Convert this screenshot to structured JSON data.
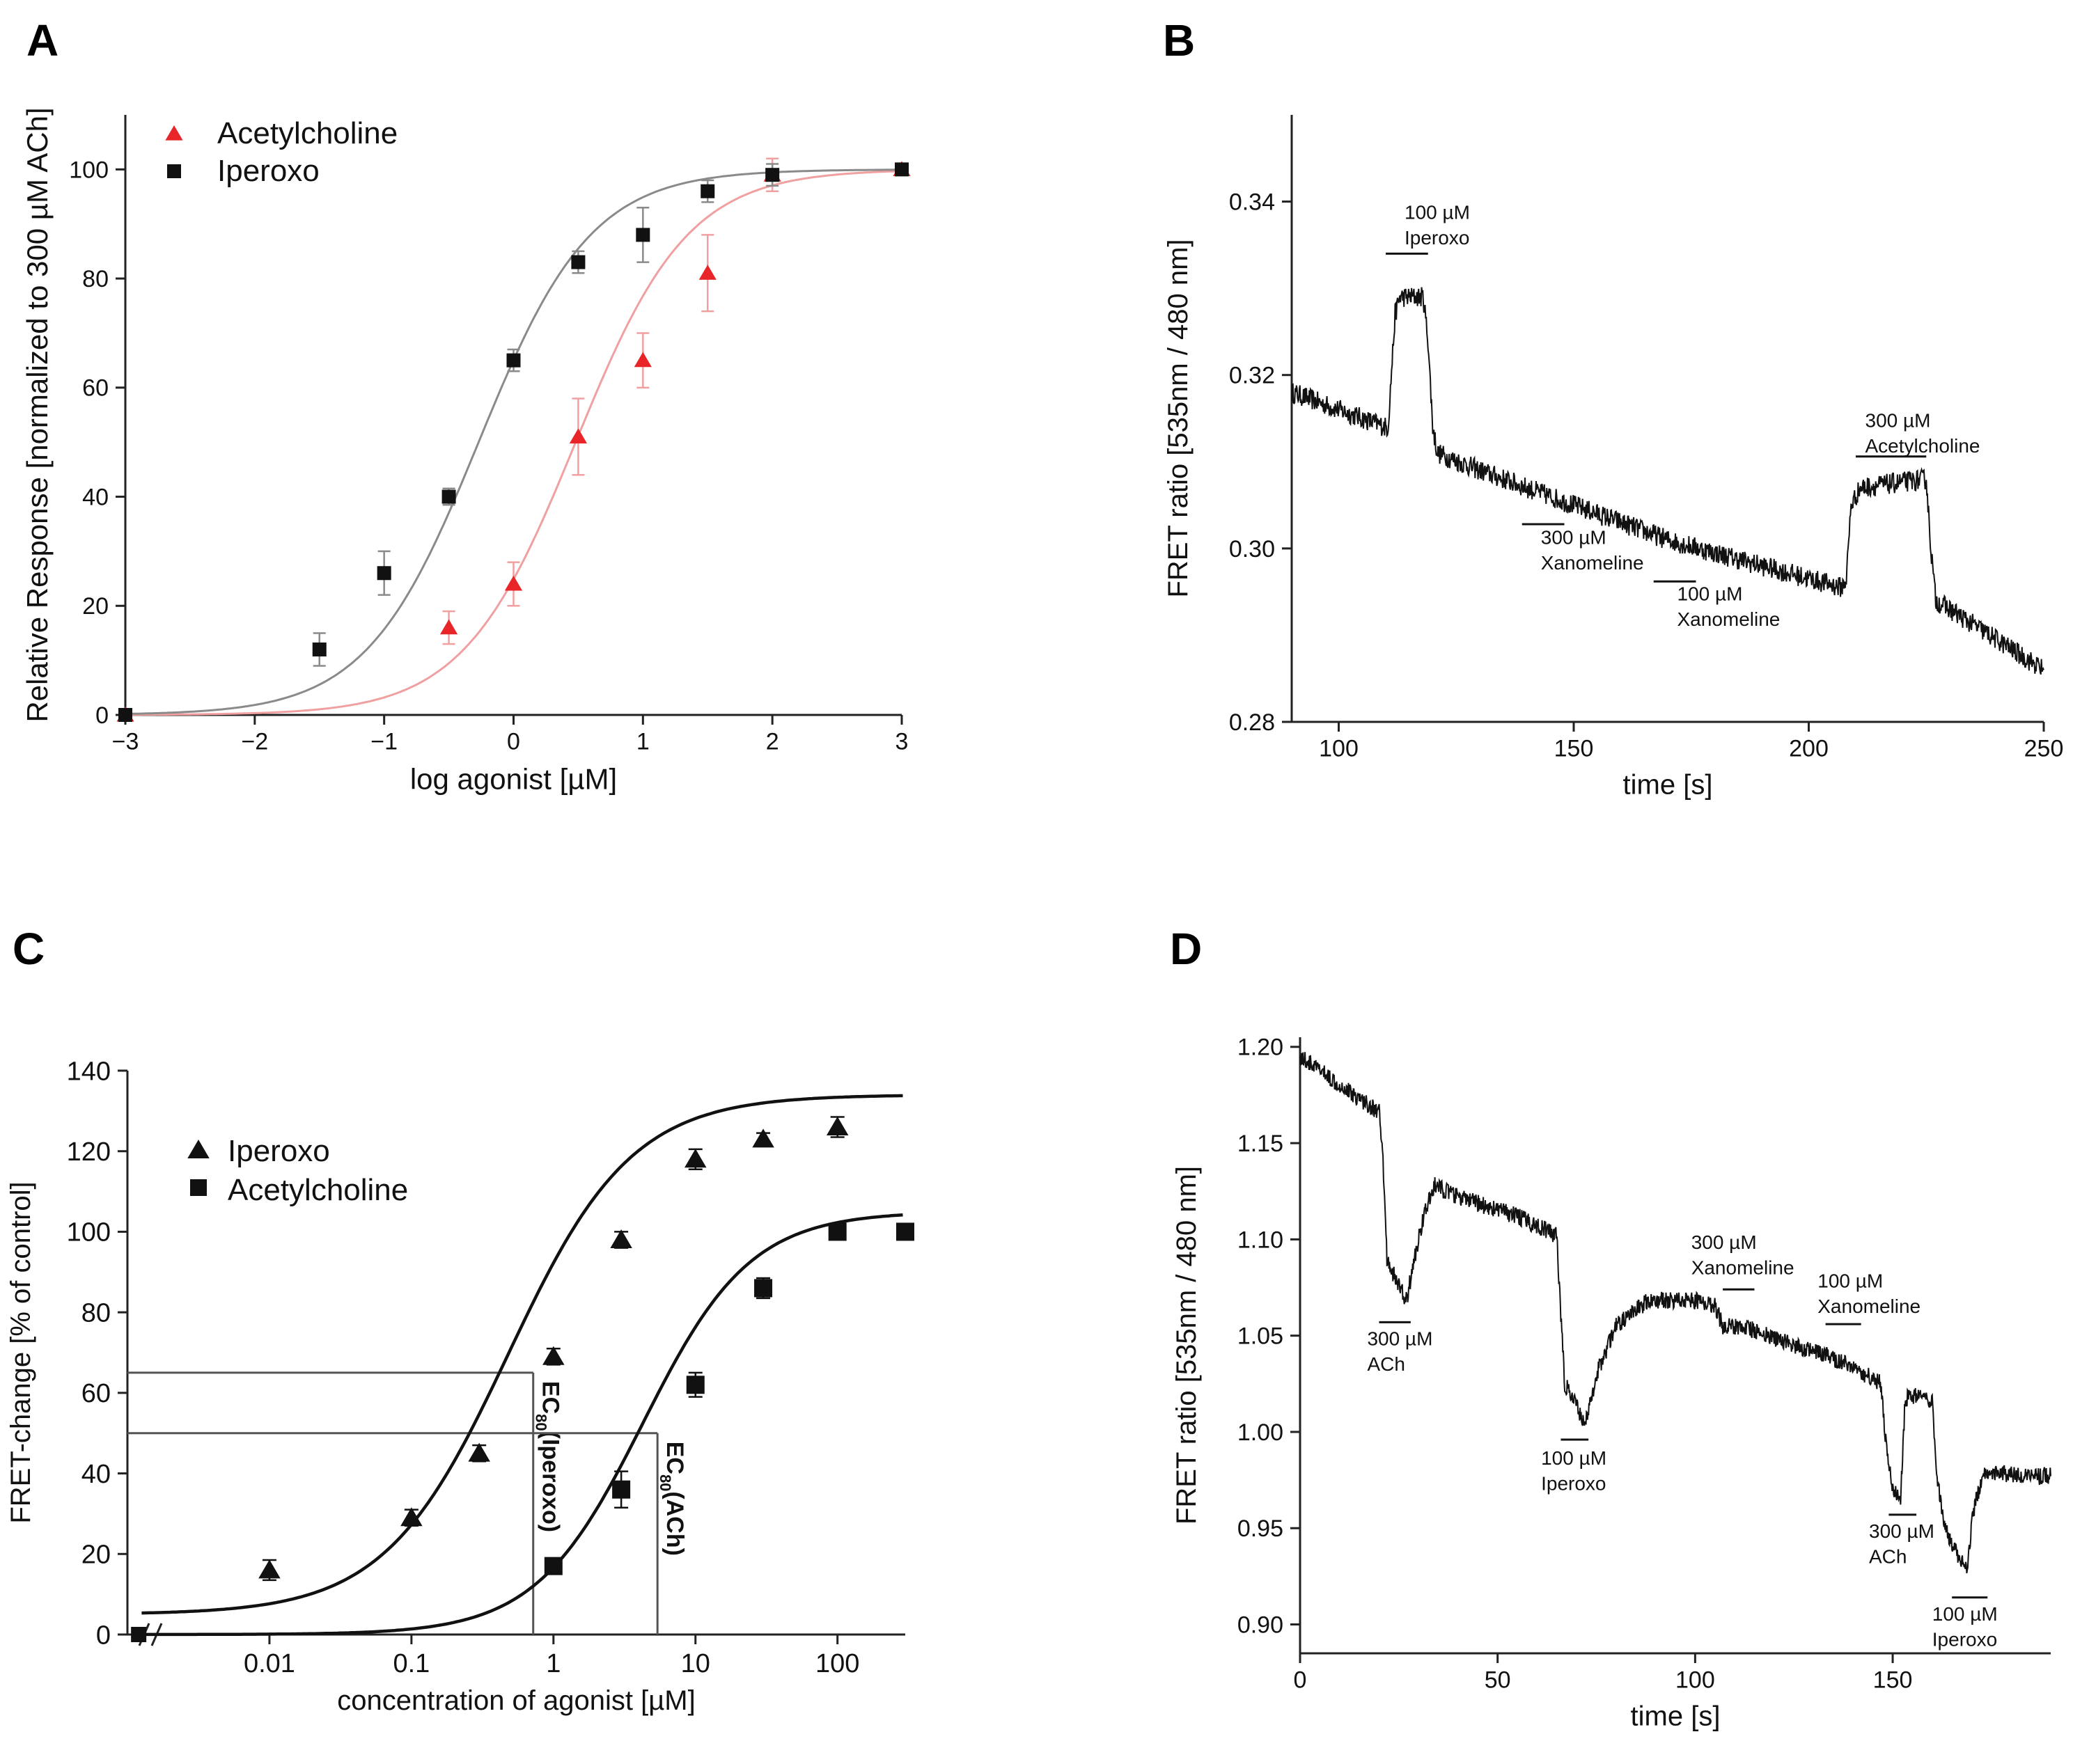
{
  "chart_data": [
    {
      "panel": "A",
      "type": "scatter",
      "xlabel": "log agonist [µM]",
      "ylabel": "Relative Response [normalized to 300 µM ACh]",
      "xlim": [
        -3,
        3
      ],
      "ylim": [
        0,
        110
      ],
      "xticks": [
        -3,
        -2,
        -1,
        0,
        1,
        2,
        3
      ],
      "yticks": [
        0,
        20,
        40,
        60,
        80,
        100
      ],
      "xtick_labels": [
        "−3",
        "−2",
        "−1",
        "0",
        "1",
        "2",
        "3"
      ],
      "ytick_labels": [
        "0",
        "20",
        "40",
        "60",
        "80",
        "100"
      ],
      "legend_position": "top-left",
      "series": [
        {
          "name": "Acetylcholine",
          "marker": "triangle",
          "color": "#e8262a",
          "fit_color": "#f0a0a0",
          "fit": {
            "bottom": 0,
            "top": 100,
            "logEC50": 0.48,
            "hill": 1.0
          },
          "x": [
            -3,
            -0.5,
            0,
            0.5,
            1,
            1.5,
            2,
            3
          ],
          "y": [
            0,
            16,
            24,
            51,
            65,
            81,
            99,
            100
          ],
          "err": [
            0,
            3,
            4,
            7,
            5,
            7,
            3,
            0
          ]
        },
        {
          "name": "Iperoxo",
          "marker": "square",
          "color": "#111111",
          "fit_color": "#8a8a8a",
          "fit": {
            "bottom": 0,
            "top": 100,
            "logEC50": -0.27,
            "hill": 1.0
          },
          "x": [
            -3,
            -1.5,
            -1,
            -0.5,
            0,
            0.5,
            1,
            1.5,
            2,
            3
          ],
          "y": [
            0,
            12,
            26,
            40,
            65,
            83,
            88,
            96,
            99,
            100
          ],
          "err": [
            0,
            3,
            4,
            1.5,
            2,
            2,
            5,
            2,
            2,
            0
          ]
        }
      ]
    },
    {
      "panel": "B",
      "type": "line",
      "xlabel": "time [s]",
      "ylabel": "FRET ratio [535nm / 480 nm]",
      "xlim": [
        90,
        250
      ],
      "ylim": [
        0.28,
        0.35
      ],
      "xticks": [
        100,
        150,
        200,
        250
      ],
      "yticks": [
        0.28,
        0.3,
        0.32,
        0.34
      ],
      "xtick_labels": [
        "100",
        "150",
        "200",
        "250"
      ],
      "ytick_labels": [
        "0.28",
        "0.30",
        "0.32",
        "0.34"
      ],
      "noise_amplitude": 0.0012,
      "trace": [
        [
          90,
          0.318
        ],
        [
          110,
          0.314
        ],
        [
          110.5,
          0.314
        ],
        [
          112,
          0.327
        ],
        [
          113,
          0.329
        ],
        [
          118,
          0.329
        ],
        [
          119,
          0.324
        ],
        [
          120,
          0.314
        ],
        [
          121,
          0.311
        ],
        [
          130,
          0.309
        ],
        [
          150,
          0.305
        ],
        [
          170,
          0.301
        ],
        [
          190,
          0.298
        ],
        [
          207,
          0.2955
        ],
        [
          208,
          0.2965
        ],
        [
          209,
          0.305
        ],
        [
          211,
          0.307
        ],
        [
          225,
          0.308
        ],
        [
          226,
          0.3
        ],
        [
          227,
          0.294
        ],
        [
          250,
          0.286
        ]
      ],
      "annotations": [
        {
          "lines": [
            "100 µM",
            "Iperoxo"
          ],
          "x_start": 110,
          "x_end": 119,
          "bar_y": 0.334,
          "text_y": 0.338,
          "text_x": 114
        },
        {
          "lines": [
            "300 µM",
            "Xanomeline"
          ],
          "x_start": 139,
          "x_end": 148,
          "bar_y": 0.3028,
          "text_y": 0.3005,
          "text_x": 143
        },
        {
          "lines": [
            "100 µM",
            "Xanomeline"
          ],
          "x_start": 167,
          "x_end": 176,
          "bar_y": 0.2962,
          "text_y": 0.294,
          "text_x": 172
        },
        {
          "lines": [
            "300 µM",
            "Acetylcholine"
          ],
          "x_start": 210,
          "x_end": 225,
          "bar_y": 0.3106,
          "text_y": 0.314,
          "text_x": 212
        }
      ]
    },
    {
      "panel": "C",
      "type": "scatter",
      "xscale": "log",
      "xlabel": "concentration of agonist [µM]",
      "ylabel": "FRET-change [% of control]",
      "xlim": [
        0.001,
        300
      ],
      "ylim": [
        0,
        140
      ],
      "xticks": [
        0.01,
        0.1,
        1,
        10,
        100
      ],
      "yticks": [
        0,
        20,
        40,
        60,
        80,
        100,
        120,
        140
      ],
      "xtick_labels": [
        "0.01",
        "0.1",
        "1",
        "10",
        "100"
      ],
      "ytick_labels": [
        "0",
        "20",
        "40",
        "60",
        "80",
        "100",
        "120",
        "140"
      ],
      "legend_position": "top-left",
      "control_point": {
        "x": 0.0012,
        "y": 0
      },
      "series": [
        {
          "name": "Iperoxo",
          "marker": "triangle",
          "color": "#111111",
          "fit": {
            "bottom": 5,
            "top": 134,
            "logEC50": -0.32,
            "hill": 1.0
          },
          "x": [
            0.01,
            0.1,
            0.3,
            1,
            3,
            10,
            30,
            100
          ],
          "y": [
            16,
            29,
            45,
            69,
            98,
            118,
            123,
            126
          ],
          "err": [
            2.5,
            2,
            2,
            2,
            2,
            2.5,
            1.5,
            2.5
          ]
        },
        {
          "name": "Acetylcholine",
          "marker": "square",
          "color": "#111111",
          "fit": {
            "bottom": 0,
            "top": 105,
            "logEC50": 0.63,
            "hill": 1.15
          },
          "x": [
            1,
            3,
            10,
            30,
            100,
            300
          ],
          "y": [
            17,
            36,
            62,
            86,
            100,
            100
          ],
          "err": [
            1,
            4.5,
            3,
            2.5,
            1,
            1
          ]
        }
      ],
      "reference_lines": [
        {
          "label": "EC80 (Iperoxo)",
          "label_main": "EC",
          "label_sub": "80",
          "label_rest": "(Iperoxo)",
          "x": 0.72,
          "y": 65
        },
        {
          "label": "EC80 (ACh)",
          "label_main": "EC",
          "label_sub": "80",
          "label_rest": "(ACh)",
          "x": 5.4,
          "y": 50
        }
      ]
    },
    {
      "panel": "D",
      "type": "line",
      "xlabel": "time [s]",
      "ylabel": "FRET ratio [535nm / 480 nm]",
      "xlim": [
        0,
        190
      ],
      "ylim": [
        0.885,
        1.205
      ],
      "xticks": [
        0,
        50,
        100,
        150
      ],
      "yticks": [
        0.9,
        0.95,
        1.0,
        1.05,
        1.1,
        1.15,
        1.2
      ],
      "xtick_labels": [
        "0",
        "50",
        "100",
        "150"
      ],
      "ytick_labels": [
        "0.90",
        "0.95",
        "1.00",
        "1.05",
        "1.10",
        "1.15",
        "1.20"
      ],
      "noise_amplitude": 0.0045,
      "trace": [
        [
          0,
          1.195
        ],
        [
          20,
          1.166
        ],
        [
          21,
          1.14
        ],
        [
          22,
          1.09
        ],
        [
          24,
          1.08
        ],
        [
          27,
          1.068
        ],
        [
          28,
          1.08
        ],
        [
          31,
          1.11
        ],
        [
          34,
          1.128
        ],
        [
          40,
          1.122
        ],
        [
          55,
          1.112
        ],
        [
          65,
          1.102
        ],
        [
          66,
          1.06
        ],
        [
          67,
          1.025
        ],
        [
          72,
          1.005
        ],
        [
          73,
          1.01
        ],
        [
          75,
          1.03
        ],
        [
          80,
          1.055
        ],
        [
          88,
          1.068
        ],
        [
          98,
          1.069
        ],
        [
          105,
          1.066
        ],
        [
          107,
          1.055
        ],
        [
          112,
          1.055
        ],
        [
          125,
          1.045
        ],
        [
          138,
          1.036
        ],
        [
          147,
          1.025
        ],
        [
          148,
          1.0
        ],
        [
          150,
          0.97
        ],
        [
          152,
          0.964
        ],
        [
          153,
          1.01
        ],
        [
          154,
          1.02
        ],
        [
          160,
          1.015
        ],
        [
          161,
          0.98
        ],
        [
          163,
          0.95
        ],
        [
          168,
          0.93
        ],
        [
          169,
          0.928
        ],
        [
          170,
          0.955
        ],
        [
          173,
          0.98
        ],
        [
          180,
          0.978
        ],
        [
          190,
          0.977
        ]
      ],
      "annotations": [
        {
          "lines": [
            "300 µM",
            "ACh"
          ],
          "x_start": 20,
          "x_end": 28,
          "bar_y": 1.057,
          "text_y": 1.045,
          "text_x": 17
        },
        {
          "lines": [
            "100 µM",
            "Iperoxo"
          ],
          "x_start": 66,
          "x_end": 73,
          "bar_y": 0.996,
          "text_y": 0.983,
          "text_x": 61
        },
        {
          "lines": [
            "300 µM",
            "Xanomeline"
          ],
          "x_start": 107,
          "x_end": 115,
          "bar_y": 1.074,
          "text_y": 1.095,
          "text_x": 99
        },
        {
          "lines": [
            "100 µM",
            "Xanomeline"
          ],
          "x_start": 133,
          "x_end": 142,
          "bar_y": 1.056,
          "text_y": 1.075,
          "text_x": 131
        },
        {
          "lines": [
            "300 µM",
            "ACh"
          ],
          "x_start": 149,
          "x_end": 156,
          "bar_y": 0.957,
          "text_y": 0.945,
          "text_x": 144
        },
        {
          "lines": [
            "100 µM",
            "Iperoxo"
          ],
          "x_start": 165,
          "x_end": 174,
          "bar_y": 0.914,
          "text_y": 0.902,
          "text_x": 160
        }
      ]
    }
  ],
  "panel_labels": [
    "A",
    "B",
    "C",
    "D"
  ]
}
